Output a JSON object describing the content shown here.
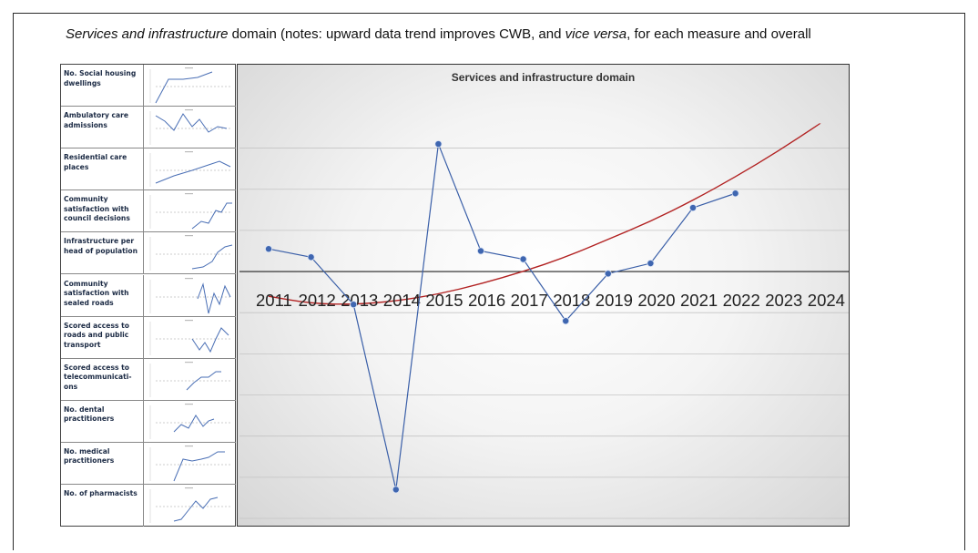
{
  "caption": {
    "part1": "Services and infrastructure",
    "part2": " domain (notes: upward data trend improves CWB, and ",
    "part3": "vice versa",
    "part4": ", for each measure and overall"
  },
  "measures": [
    {
      "label": "No. Social housing dwellings"
    },
    {
      "label": "Ambulatory care admissions"
    },
    {
      "label": "Residential care places"
    },
    {
      "label": "Community satisfaction with council decisions"
    },
    {
      "label": "Infrastructure per head of population"
    },
    {
      "label": "Community satisfaction with sealed roads"
    },
    {
      "label": "Scored access to roads and public transport"
    },
    {
      "label": "Scored access to telecommunicati-ons"
    },
    {
      "label": "No. dental practitioners"
    },
    {
      "label": "No. medical practitioners"
    },
    {
      "label": "No. of pharmacists"
    }
  ],
  "chart_data": {
    "type": "line",
    "title": "Services and infrastructure domain",
    "x": [
      "2011",
      "2012",
      "2013",
      "2014",
      "2015",
      "2016",
      "2017",
      "2018",
      "2019",
      "2020",
      "2021",
      "2022",
      "2023",
      "2024"
    ],
    "series": [
      {
        "values": [
          0.55,
          0.35,
          -0.8,
          -5.3,
          3.1,
          0.5,
          0.3,
          -1.2,
          -0.05,
          0.2,
          1.55,
          1.9,
          null,
          null
        ],
        "color": "#3a5fa8"
      }
    ],
    "trendline": {
      "type": "polynomial-2",
      "color": "#b22222",
      "values": [
        -0.6,
        -0.78,
        -0.8,
        -0.72,
        -0.55,
        -0.3,
        0.0,
        0.35,
        0.78,
        1.22,
        1.73,
        2.3,
        2.92,
        3.6
      ]
    },
    "ylim": [
      -6,
      3.5
    ],
    "grid": true,
    "legend": "none"
  }
}
